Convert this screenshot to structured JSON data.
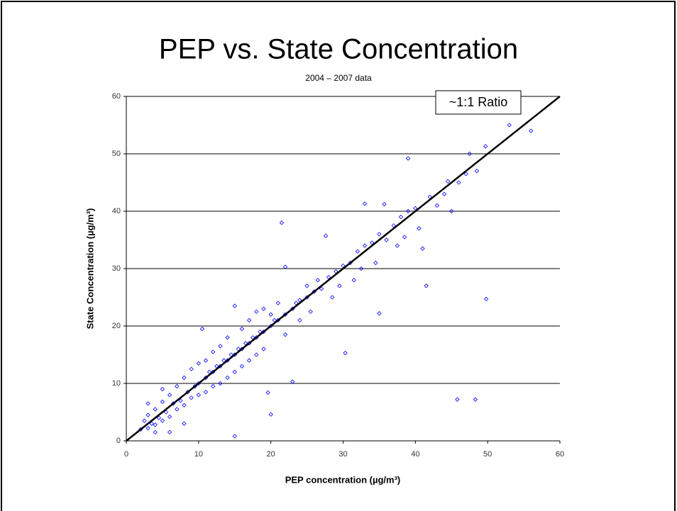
{
  "chart_data": {
    "type": "scatter",
    "title": "PEP vs. State Concentration",
    "subtitle": "2004 – 2007 data",
    "x_label": "PEP concentration (µg/m³)",
    "y_label": "State Concentration (µg/m³)",
    "annotation": "~1:1 Ratio",
    "xlim": [
      0,
      60
    ],
    "ylim": [
      0,
      60
    ],
    "xticks": [
      0,
      10,
      20,
      30,
      40,
      50,
      60
    ],
    "yticks": [
      0,
      10,
      20,
      30,
      40,
      50,
      60
    ],
    "grid": true,
    "reference_line": {
      "color": "#000000",
      "x": [
        0,
        60
      ],
      "y": [
        0,
        60
      ]
    },
    "series": [
      {
        "color": "#0000ff",
        "x": [
          2,
          2.5,
          3,
          3,
          3.5,
          4,
          4,
          4.5,
          5,
          5,
          5.5,
          6,
          6,
          6.5,
          7,
          7,
          7.5,
          8,
          8,
          8.5,
          9,
          9,
          9.5,
          10,
          10,
          10,
          10.5,
          11,
          11,
          11,
          11.5,
          12,
          12,
          12,
          12.5,
          13,
          13,
          13,
          13.5,
          14,
          14,
          14,
          14.5,
          15,
          15,
          15,
          15,
          15.5,
          16,
          16,
          16,
          16.5,
          17,
          17,
          17,
          17.5,
          18,
          18,
          18,
          18.5,
          19,
          19,
          19,
          19.6,
          20,
          20,
          20,
          20.5,
          21,
          21,
          21.5,
          22,
          22,
          22,
          23,
          23,
          23.5,
          24,
          24,
          25,
          25,
          25.5,
          26,
          26.5,
          27,
          27.6,
          28,
          28.5,
          29,
          29.5,
          30,
          30.3,
          31,
          31.5,
          32,
          32.5,
          33,
          33,
          34,
          34.5,
          35,
          35,
          35.7,
          36,
          37,
          37.5,
          38,
          38.5,
          39,
          39,
          40,
          40.5,
          41,
          41.5,
          42,
          43,
          44,
          44.5,
          45,
          45.8,
          46,
          47,
          47.5,
          48.3,
          48.5,
          49.7,
          49.8,
          53,
          56,
          4,
          6,
          8,
          5,
          3
        ],
        "y": [
          2,
          3.5,
          2.2,
          4.5,
          3,
          5.5,
          2.8,
          4,
          6.8,
          3.5,
          5,
          8,
          4.2,
          6.5,
          9.5,
          5.5,
          7,
          11,
          6.2,
          8.5,
          12.5,
          7.5,
          9.5,
          10,
          13.5,
          8,
          19.5,
          11,
          14,
          8.5,
          12,
          12,
          15.5,
          9.5,
          13,
          13,
          16.5,
          10,
          14,
          14,
          18,
          11,
          15,
          15,
          23.5,
          12,
          0.8,
          16,
          16,
          19.5,
          13,
          17,
          17,
          21,
          14,
          18,
          18,
          22.5,
          15,
          19,
          19,
          23,
          16,
          8.4,
          20,
          4.6,
          22,
          21,
          21,
          24,
          38,
          22,
          30.3,
          18.5,
          23,
          10.3,
          24,
          24.5,
          21,
          25,
          27,
          22.5,
          26,
          28,
          26.5,
          35.7,
          28.5,
          25,
          29.5,
          27,
          30.5,
          15.3,
          31,
          28,
          33,
          30,
          41.3,
          34,
          34.5,
          31,
          22.2,
          36,
          41.2,
          35,
          37.5,
          34,
          39,
          35.5,
          49.2,
          40,
          40.5,
          37,
          33.5,
          27,
          42.5,
          41,
          43,
          45.2,
          40,
          7.2,
          45,
          46.5,
          50,
          7.2,
          47,
          51.3,
          24.7,
          55,
          54,
          1.5,
          1.5,
          3,
          9,
          6.5
        ]
      }
    ]
  }
}
